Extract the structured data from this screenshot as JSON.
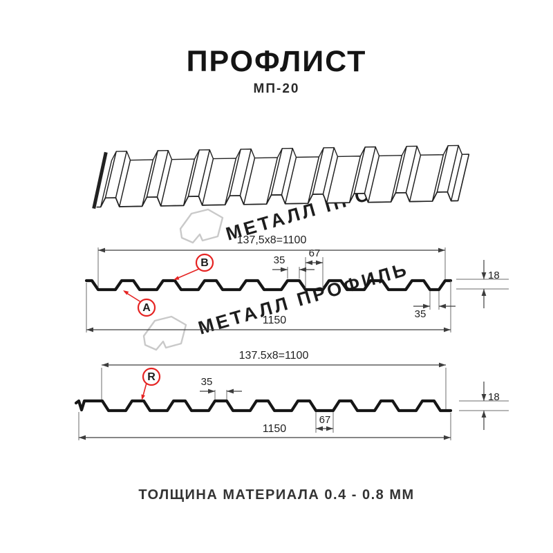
{
  "header": {
    "title": "ПРОФЛИСТ",
    "subtitle": "МП-20"
  },
  "footer": {
    "text": "ТОЛЩИНА МАТЕРИАЛА 0.4 - 0.8 ММ"
  },
  "watermark": {
    "text": "МЕТАЛЛ ПРОФИЛЬ",
    "color": "#c9c9c9"
  },
  "colors": {
    "accent_red": "#e52322",
    "profile_line": "#161616",
    "thin_line": "#222222",
    "dim_line": "#3d3d3d"
  },
  "sections": [
    {
      "name": "profile-section-AB",
      "dim_top": "137,5x8=1100",
      "dim_crest": "35",
      "dim_valley": "67",
      "dim_lap": "35",
      "dim_height": "18",
      "dim_total": "1150",
      "label_a": "A",
      "label_b": "B"
    },
    {
      "name": "profile-section-R",
      "dim_top": "137.5x8=1100",
      "dim_crest": "35",
      "dim_valley": "67",
      "dim_height": "18",
      "dim_total": "1150",
      "label_r": "R"
    }
  ]
}
